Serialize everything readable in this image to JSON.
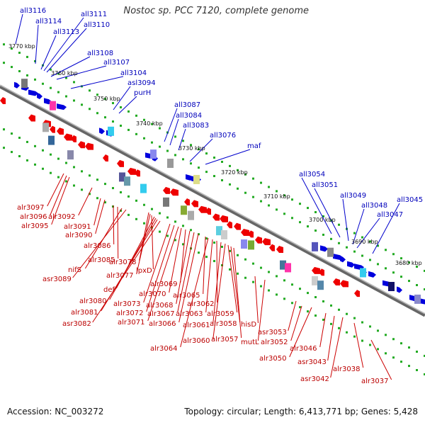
{
  "header": {
    "title": "Nostoc sp. PCC 7120, complete genome"
  },
  "footer": {
    "accession": "Accession: NC_003272",
    "summary": "Topology: circular; Length: 6,413,771 bp; Genes: 5,428"
  },
  "colors": {
    "top_strand": "#0000dd",
    "bottom_strand": "#ee0000",
    "backbone": "#888888",
    "ticks": "#22aa22"
  },
  "kbp_ticks": [
    "3770 kbp",
    "3760 kbp",
    "3750 kbp",
    "3740 kbp",
    "3730 kbp",
    "3720 kbp",
    "3710 kbp",
    "3700 kbp",
    "3690 kbp",
    "3680 kbp"
  ],
  "top_labels": [
    "all3116",
    "all3114",
    "all3113",
    "all3111",
    "all3110",
    "all3108",
    "all3107",
    "all3104",
    "asl3094",
    "purH",
    "all3087",
    "all3084",
    "all3083",
    "all3076",
    "maf",
    "all3054",
    "all3051",
    "all3049",
    "all3048",
    "all3047",
    "all3045"
  ],
  "bottom_labels": [
    "alr3097",
    "alr3096",
    "alr3095",
    "alr3092",
    "alr3091",
    "alr3090",
    "alr3086",
    "alr3085",
    "nifS",
    "asr3089",
    "alr3078",
    "alr3077",
    "lpxD",
    "def",
    "alr3080",
    "alr3081",
    "asr3082",
    "alr3073",
    "alr3072",
    "alr3071",
    "alr3070",
    "alr3069",
    "alr3068",
    "alr3067",
    "alr3066",
    "alr3065",
    "alr3064",
    "alr3063",
    "alr3062",
    "alr3061",
    "alr3060",
    "alr3059",
    "alr3058",
    "alr3057",
    "hisD",
    "mutL",
    "asr3053",
    "alr3052",
    "alr3050",
    "alr3046",
    "asr3043",
    "asr3042",
    "alr3038",
    "alr3037"
  ]
}
